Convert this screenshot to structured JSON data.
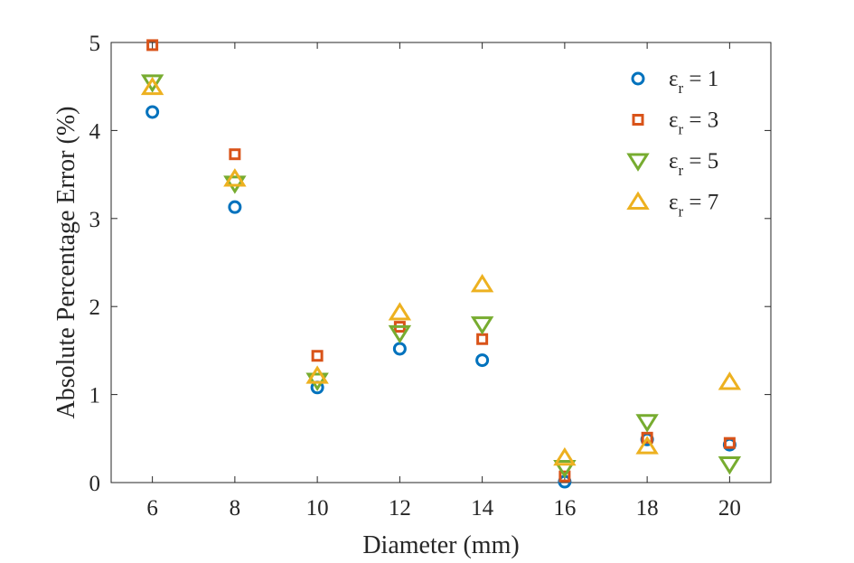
{
  "chart_data": {
    "type": "scatter",
    "title": "",
    "xlabel": "Diameter (mm)",
    "ylabel": "Absolute Percentage Error (%)",
    "xlim": [
      5,
      21
    ],
    "ylim": [
      0,
      5
    ],
    "xticks": [
      6,
      8,
      10,
      12,
      14,
      16,
      18,
      20
    ],
    "yticks": [
      0,
      1,
      2,
      3,
      4,
      5
    ],
    "grid": false,
    "legend_position": "top-right",
    "x": [
      6,
      8,
      10,
      12,
      14,
      16,
      18,
      20
    ],
    "series": [
      {
        "name": "εr = 1",
        "symbol": "ε",
        "sub": "r",
        "eq": " = 1",
        "marker": "circle",
        "color": "#0072BD",
        "values": [
          4.21,
          3.13,
          1.08,
          1.52,
          1.39,
          0.01,
          0.49,
          0.43
        ]
      },
      {
        "name": "εr = 3",
        "symbol": "ε",
        "sub": "r",
        "eq": " = 3",
        "marker": "square",
        "color": "#D95319",
        "values": [
          4.97,
          3.73,
          1.44,
          1.77,
          1.63,
          0.07,
          0.51,
          0.45
        ]
      },
      {
        "name": "εr = 5",
        "symbol": "ε",
        "sub": "r",
        "eq": " = 5",
        "marker": "triangle-down",
        "color": "#77AC30",
        "values": [
          4.55,
          3.4,
          1.16,
          1.7,
          1.8,
          0.17,
          0.69,
          0.21
        ]
      },
      {
        "name": "εr = 7",
        "symbol": "ε",
        "sub": "r",
        "eq": " = 7",
        "marker": "triangle-up",
        "color": "#EDB120",
        "values": [
          4.49,
          3.45,
          1.21,
          1.93,
          2.25,
          0.28,
          0.41,
          1.14
        ]
      }
    ]
  }
}
